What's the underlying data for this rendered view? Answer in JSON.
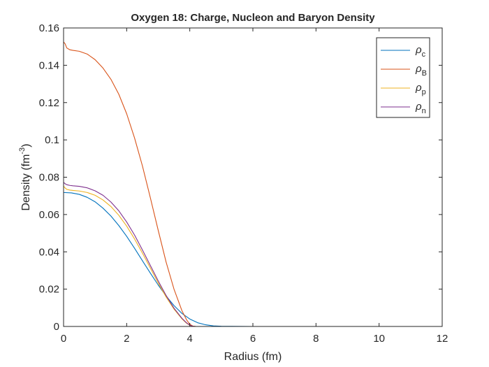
{
  "chart_data": {
    "type": "line",
    "title": "Oxygen 18: Charge, Nucleon and Baryon Density",
    "xlabel": "Radius (fm)",
    "ylabel": "Density (fm^-3)",
    "ylabel_base": "Density (fm",
    "ylabel_exp": "-3",
    "ylabel_close": ")",
    "xlim": [
      0,
      12
    ],
    "ylim": [
      0,
      0.16
    ],
    "xticks": [
      0,
      2,
      4,
      6,
      8,
      10,
      12
    ],
    "yticks": [
      0,
      0.02,
      0.04,
      0.06,
      0.08,
      0.1,
      0.12,
      0.14,
      0.16
    ],
    "xtick_labels": [
      "0",
      "2",
      "4",
      "6",
      "8",
      "10",
      "12"
    ],
    "ytick_labels": [
      "0",
      "0.02",
      "0.04",
      "0.06",
      "0.08",
      "0.1",
      "0.12",
      "0.14",
      "0.16"
    ],
    "grid": false,
    "legend_position": "top-right",
    "series": [
      {
        "name": "ρc",
        "symbol": "ρ",
        "subscript": "c",
        "color": "#0072BD",
        "x": [
          0,
          0.25,
          0.5,
          0.75,
          1.0,
          1.25,
          1.5,
          1.75,
          2.0,
          2.25,
          2.5,
          2.75,
          3.0,
          3.25,
          3.5,
          3.75,
          4.0,
          4.25,
          4.5,
          4.75,
          5.0,
          6,
          8,
          10,
          12
        ],
        "y": [
          0.0718,
          0.0716,
          0.0708,
          0.0692,
          0.0668,
          0.0634,
          0.0592,
          0.0541,
          0.0483,
          0.0419,
          0.0352,
          0.0286,
          0.0222,
          0.0163,
          0.0112,
          0.007,
          0.004,
          0.002,
          0.0009,
          0.0003,
          0.0001,
          0,
          0,
          0,
          0
        ]
      },
      {
        "name": "ρB",
        "symbol": "ρ",
        "subscript": "B",
        "color": "#D95319",
        "x": [
          0,
          0.05,
          0.1,
          0.2,
          0.3,
          0.5,
          0.75,
          1.0,
          1.25,
          1.5,
          1.75,
          2.0,
          2.25,
          2.5,
          2.75,
          3.0,
          3.25,
          3.5,
          3.75,
          3.9,
          4.0,
          4.1,
          4.2,
          5,
          6,
          8,
          10,
          12
        ],
        "y": [
          0.1525,
          0.1515,
          0.1493,
          0.1483,
          0.148,
          0.1475,
          0.146,
          0.143,
          0.1385,
          0.1325,
          0.1245,
          0.114,
          0.101,
          0.086,
          0.069,
          0.0515,
          0.0345,
          0.02,
          0.0085,
          0.0035,
          0.0012,
          0.0002,
          0,
          0,
          0,
          0,
          0,
          0
        ]
      },
      {
        "name": "ρp",
        "symbol": "ρ",
        "subscript": "p",
        "color": "#EDB120",
        "x": [
          0,
          0.05,
          0.1,
          0.2,
          0.3,
          0.5,
          0.75,
          1.0,
          1.25,
          1.5,
          1.75,
          2.0,
          2.25,
          2.5,
          2.75,
          3.0,
          3.25,
          3.5,
          3.75,
          3.9,
          4.0,
          4.1,
          4.2,
          5,
          6,
          8,
          10,
          12
        ],
        "y": [
          0.0752,
          0.0742,
          0.0735,
          0.0731,
          0.0729,
          0.0726,
          0.0718,
          0.0703,
          0.0678,
          0.0643,
          0.0596,
          0.0538,
          0.0469,
          0.0393,
          0.0313,
          0.0233,
          0.0158,
          0.0093,
          0.0041,
          0.0017,
          0.0006,
          0.0001,
          0,
          0,
          0,
          0,
          0,
          0
        ]
      },
      {
        "name": "ρn",
        "symbol": "ρ",
        "subscript": "n",
        "color": "#7E2F8E",
        "x": [
          0,
          0.05,
          0.1,
          0.2,
          0.3,
          0.5,
          0.75,
          1.0,
          1.25,
          1.5,
          1.75,
          2.0,
          2.25,
          2.5,
          2.75,
          3.0,
          3.25,
          3.5,
          3.75,
          3.9,
          4.0,
          4.1,
          4.2,
          5,
          6,
          8,
          10,
          12
        ],
        "y": [
          0.0772,
          0.0765,
          0.076,
          0.0756,
          0.0754,
          0.0751,
          0.0743,
          0.0727,
          0.0703,
          0.0667,
          0.062,
          0.056,
          0.049,
          0.041,
          0.0327,
          0.0244,
          0.0166,
          0.0098,
          0.0044,
          0.0019,
          0.0007,
          0.0001,
          0,
          0,
          0,
          0,
          0,
          0
        ]
      }
    ]
  }
}
